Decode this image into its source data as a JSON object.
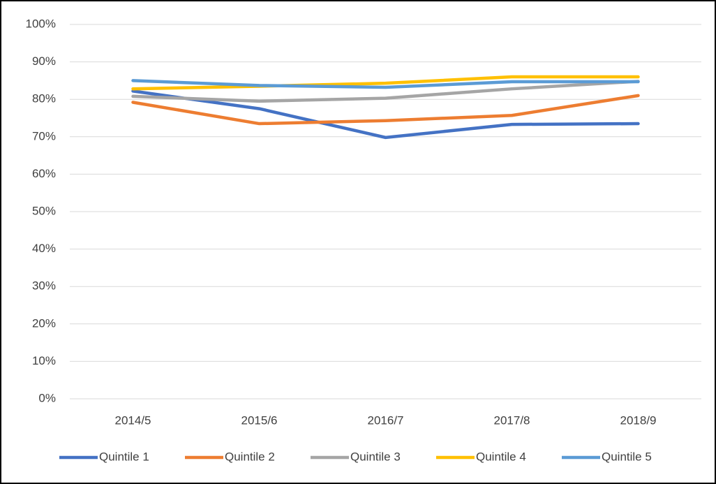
{
  "chart_data": {
    "type": "line",
    "categories": [
      "2014/5",
      "2015/6",
      "2016/7",
      "2017/8",
      "2018/9"
    ],
    "series": [
      {
        "name": "Quintile 1",
        "color": "#4472c4",
        "values": [
          82.2,
          77.5,
          69.8,
          73.3,
          73.5
        ]
      },
      {
        "name": "Quintile 2",
        "color": "#ed7d31",
        "values": [
          79.2,
          73.5,
          74.3,
          75.7,
          81.0
        ]
      },
      {
        "name": "Quintile 3",
        "color": "#a5a5a5",
        "values": [
          80.8,
          79.5,
          80.3,
          82.8,
          84.8
        ]
      },
      {
        "name": "Quintile 4",
        "color": "#ffc000",
        "values": [
          82.8,
          83.5,
          84.3,
          86.0,
          86.0
        ]
      },
      {
        "name": "Quintile 5",
        "color": "#5b9bd5",
        "values": [
          85.0,
          83.7,
          83.2,
          84.7,
          84.7
        ]
      }
    ],
    "ylim": [
      0,
      100
    ],
    "yticks": [
      {
        "value": 0,
        "label": "0%"
      },
      {
        "value": 10,
        "label": "10%"
      },
      {
        "value": 20,
        "label": "20%"
      },
      {
        "value": 30,
        "label": "30%"
      },
      {
        "value": 40,
        "label": "40%"
      },
      {
        "value": 50,
        "label": "50%"
      },
      {
        "value": 60,
        "label": "60%"
      },
      {
        "value": 70,
        "label": "70%"
      },
      {
        "value": 80,
        "label": "80%"
      },
      {
        "value": 90,
        "label": "90%"
      },
      {
        "value": 100,
        "label": "100%"
      }
    ],
    "grid": true,
    "legend": "bottom"
  }
}
